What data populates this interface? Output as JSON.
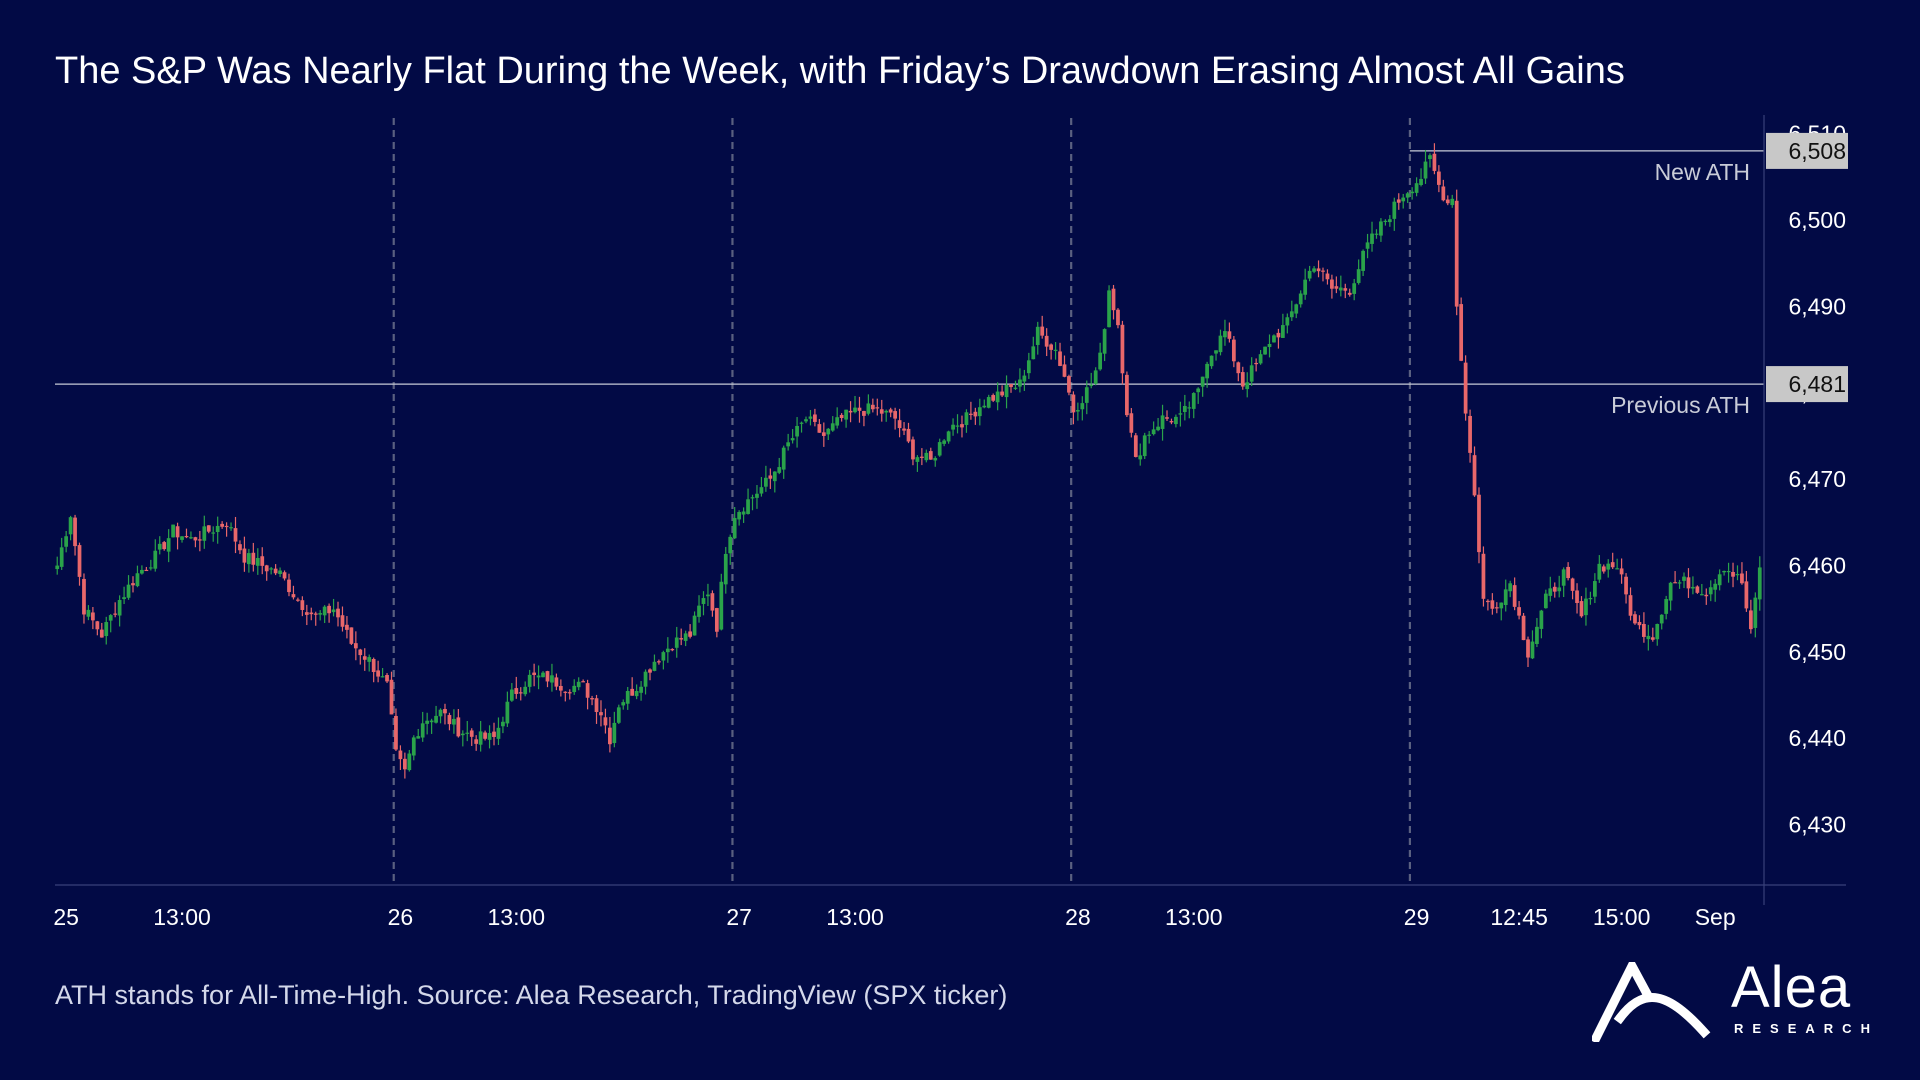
{
  "title": "The S&P Was Nearly Flat During the Week, with Friday’s Drawdown Erasing Almost All Gains",
  "footer": {
    "source": "ATH stands for All-Time-High. Source: Alea Research, TradingView (SPX ticker)",
    "logo_text": "Alea",
    "logo_subtext": "RESEARCH"
  },
  "colors": {
    "background": "#020a45",
    "up": "#2aa34a",
    "down": "#e8676a",
    "ref_line": "#c7cbd6",
    "tag_bg": "#c8c8c8",
    "tag_text": "#111111",
    "axis_text": "#ffffff",
    "annotation_text": "#c9ccd8"
  },
  "chart_data": {
    "type": "candlestick",
    "ylim": [
      6423,
      6511
    ],
    "y_ticks": [
      6430,
      6440,
      6450,
      6460,
      6470,
      6480,
      6490,
      6500,
      6510
    ],
    "y_tick_labels": [
      "6,430",
      "6,440",
      "6,450",
      "6,460",
      "6,470",
      "6,480",
      "6,490",
      "6,500",
      "6,510"
    ],
    "x_tick_labels": [
      {
        "label": "25",
        "bar": 2
      },
      {
        "label": "13:00",
        "bar": 28
      },
      {
        "label": "26",
        "bar": 77
      },
      {
        "label": "13:00",
        "bar": 103
      },
      {
        "label": "27",
        "bar": 153
      },
      {
        "label": "13:00",
        "bar": 179
      },
      {
        "label": "28",
        "bar": 229
      },
      {
        "label": "13:00",
        "bar": 255
      },
      {
        "label": "29",
        "bar": 305
      },
      {
        "label": "12:45",
        "bar": 328
      },
      {
        "label": "15:00",
        "bar": 351
      },
      {
        "label": "Sep",
        "bar": 372
      }
    ],
    "day_separators": [
      76,
      152,
      228,
      304
    ],
    "reference_lines": [
      {
        "value": 6508,
        "tag": "6,508",
        "label": "New ATH",
        "start_bar": 304
      },
      {
        "value": 6481,
        "tag": "6,481",
        "label": "Previous ATH",
        "start_bar": 0
      }
    ],
    "anchors": [
      [
        0,
        6460
      ],
      [
        3,
        6466
      ],
      [
        6,
        6455
      ],
      [
        10,
        6452
      ],
      [
        14,
        6456
      ],
      [
        18,
        6459
      ],
      [
        22,
        6461
      ],
      [
        26,
        6464
      ],
      [
        30,
        6463
      ],
      [
        34,
        6464
      ],
      [
        38,
        6465
      ],
      [
        42,
        6461
      ],
      [
        46,
        6460
      ],
      [
        50,
        6459
      ],
      [
        54,
        6456
      ],
      [
        58,
        6454
      ],
      [
        62,
        6455
      ],
      [
        66,
        6451
      ],
      [
        70,
        6449
      ],
      [
        74,
        6446
      ],
      [
        76,
        6438
      ],
      [
        78,
        6436
      ],
      [
        80,
        6440
      ],
      [
        82,
        6442
      ],
      [
        86,
        6443
      ],
      [
        90,
        6441
      ],
      [
        94,
        6440
      ],
      [
        98,
        6440
      ],
      [
        102,
        6445
      ],
      [
        106,
        6447
      ],
      [
        110,
        6447
      ],
      [
        114,
        6446
      ],
      [
        118,
        6446
      ],
      [
        122,
        6443
      ],
      [
        124,
        6440
      ],
      [
        126,
        6444
      ],
      [
        130,
        6446
      ],
      [
        134,
        6449
      ],
      [
        138,
        6451
      ],
      [
        142,
        6452
      ],
      [
        144,
        6455
      ],
      [
        146,
        6457
      ],
      [
        148,
        6453
      ],
      [
        150,
        6462
      ],
      [
        152,
        6466
      ],
      [
        156,
        6468
      ],
      [
        160,
        6470
      ],
      [
        164,
        6474
      ],
      [
        168,
        6477
      ],
      [
        172,
        6475
      ],
      [
        176,
        6477
      ],
      [
        180,
        6478
      ],
      [
        184,
        6478
      ],
      [
        188,
        6477
      ],
      [
        192,
        6473
      ],
      [
        196,
        6472
      ],
      [
        200,
        6476
      ],
      [
        204,
        6477
      ],
      [
        208,
        6479
      ],
      [
        212,
        6480
      ],
      [
        216,
        6481
      ],
      [
        220,
        6487
      ],
      [
        224,
        6485
      ],
      [
        226,
        6482
      ],
      [
        228,
        6478
      ],
      [
        232,
        6481
      ],
      [
        234,
        6484
      ],
      [
        236,
        6492
      ],
      [
        238,
        6488
      ],
      [
        240,
        6478
      ],
      [
        242,
        6472
      ],
      [
        244,
        6475
      ],
      [
        248,
        6477
      ],
      [
        252,
        6477
      ],
      [
        256,
        6480
      ],
      [
        258,
        6484
      ],
      [
        262,
        6487
      ],
      [
        266,
        6481
      ],
      [
        270,
        6484
      ],
      [
        272,
        6486
      ],
      [
        276,
        6488
      ],
      [
        280,
        6493
      ],
      [
        282,
        6495
      ],
      [
        286,
        6492
      ],
      [
        290,
        6492
      ],
      [
        294,
        6497
      ],
      [
        298,
        6500
      ],
      [
        302,
        6503
      ],
      [
        306,
        6505
      ],
      [
        308,
        6507
      ],
      [
        310,
        6504
      ],
      [
        312,
        6502
      ],
      [
        313,
        6503
      ],
      [
        314,
        6490
      ],
      [
        316,
        6478
      ],
      [
        318,
        6468
      ],
      [
        320,
        6456
      ],
      [
        322,
        6455
      ],
      [
        326,
        6458
      ],
      [
        330,
        6450
      ],
      [
        334,
        6456
      ],
      [
        338,
        6459
      ],
      [
        342,
        6454
      ],
      [
        346,
        6460
      ],
      [
        350,
        6460
      ],
      [
        354,
        6453
      ],
      [
        358,
        6452
      ],
      [
        362,
        6458
      ],
      [
        366,
        6458
      ],
      [
        370,
        6457
      ],
      [
        374,
        6460
      ],
      [
        378,
        6458
      ],
      [
        380,
        6452
      ],
      [
        382,
        6460
      ]
    ],
    "count": 383
  }
}
